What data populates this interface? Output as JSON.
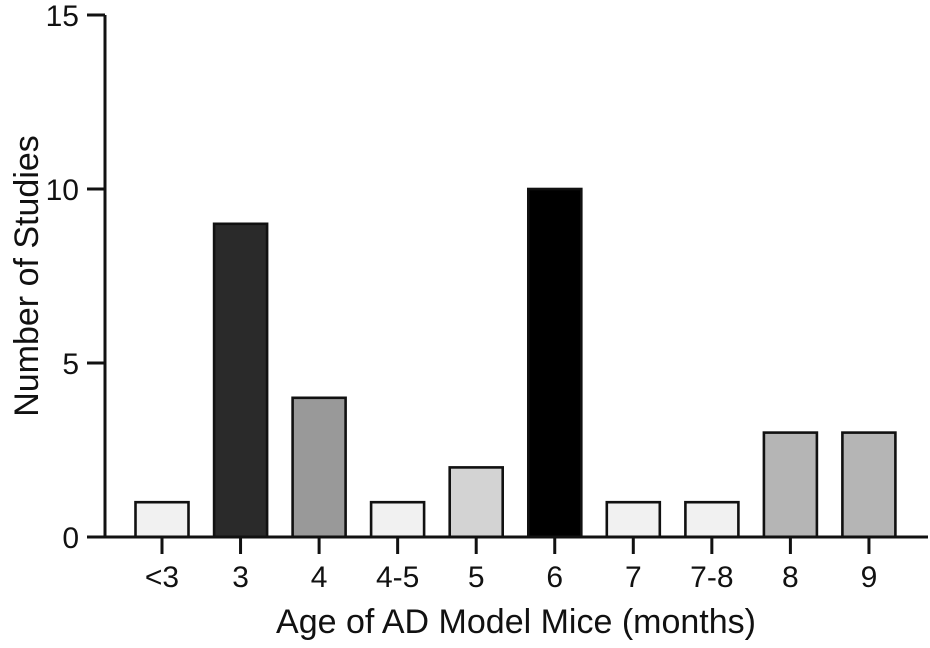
{
  "chart_data": {
    "type": "bar",
    "title": "",
    "xlabel": "Age of AD Model Mice (months)",
    "ylabel": "Number of Studies",
    "categories": [
      "<3",
      "3",
      "4",
      "4-5",
      "5",
      "6",
      "7",
      "7-8",
      "8",
      "9"
    ],
    "values": [
      1,
      9,
      4,
      1,
      2,
      10,
      1,
      1,
      3,
      3
    ],
    "bar_colors": [
      "#f1f1f1",
      "#2a2a2a",
      "#999999",
      "#f1f1f1",
      "#d3d3d3",
      "#000000",
      "#f1f1f1",
      "#f1f1f1",
      "#b5b5b5",
      "#b5b5b5"
    ],
    "bar_outline_color": "#111111",
    "axis_color": "#111111",
    "background_color": "#ffffff",
    "ylim": [
      0,
      15
    ],
    "yticks": [
      0,
      5,
      10,
      15
    ],
    "grid": false,
    "legend": "none"
  }
}
